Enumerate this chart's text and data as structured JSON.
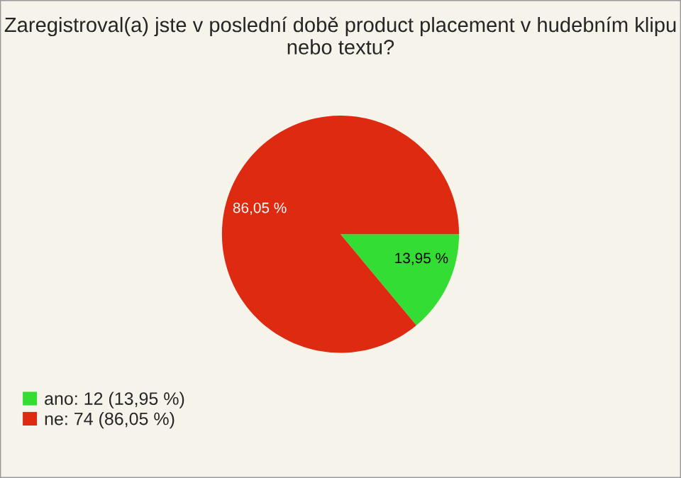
{
  "chart_data": {
    "type": "pie",
    "title": "Zaregistroval(a) jste v poslední době product placement v hudebním klipu nebo textu?",
    "categories": [
      "ano: 12 (13,95 %)",
      "ne: 74 (86,05 %)"
    ],
    "values": [
      13.95,
      86.05
    ],
    "value_labels": [
      "13,95 %",
      "86,05 %"
    ],
    "colors": [
      "#33dd33",
      "#dd2a10"
    ],
    "legend": "bottom left"
  }
}
